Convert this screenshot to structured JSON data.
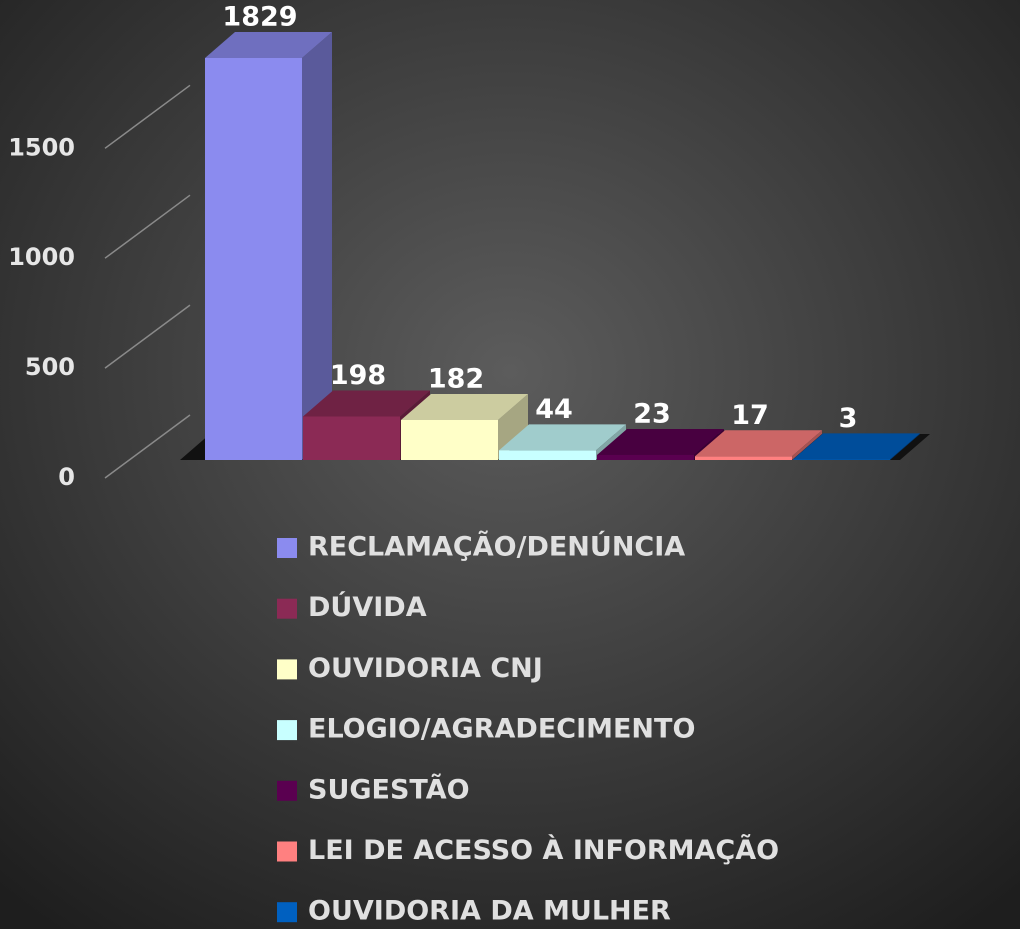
{
  "chart_data": {
    "type": "bar3d",
    "categories": [
      "RECLAMAÇÃO/DENÚNCIA",
      "DÚVIDA",
      "OUVIDORIA CNJ",
      "ELOGIO/AGRADECIMENTO",
      "SUGESTÃO",
      "LEI DE ACESSO À INFORMAÇÃO",
      "OUVIDORIA DA MULHER"
    ],
    "values": [
      1829,
      198,
      182,
      44,
      23,
      17,
      3
    ],
    "colors": [
      "#8b8bef",
      "#8b2a55",
      "#ffffc8",
      "#c8ffff",
      "#5a0050",
      "#ff8080",
      "#0060c0"
    ],
    "ylim": [
      0,
      2000
    ],
    "yticks": [
      0,
      500,
      1000,
      1500
    ],
    "grid": true,
    "legend": "bottom"
  }
}
